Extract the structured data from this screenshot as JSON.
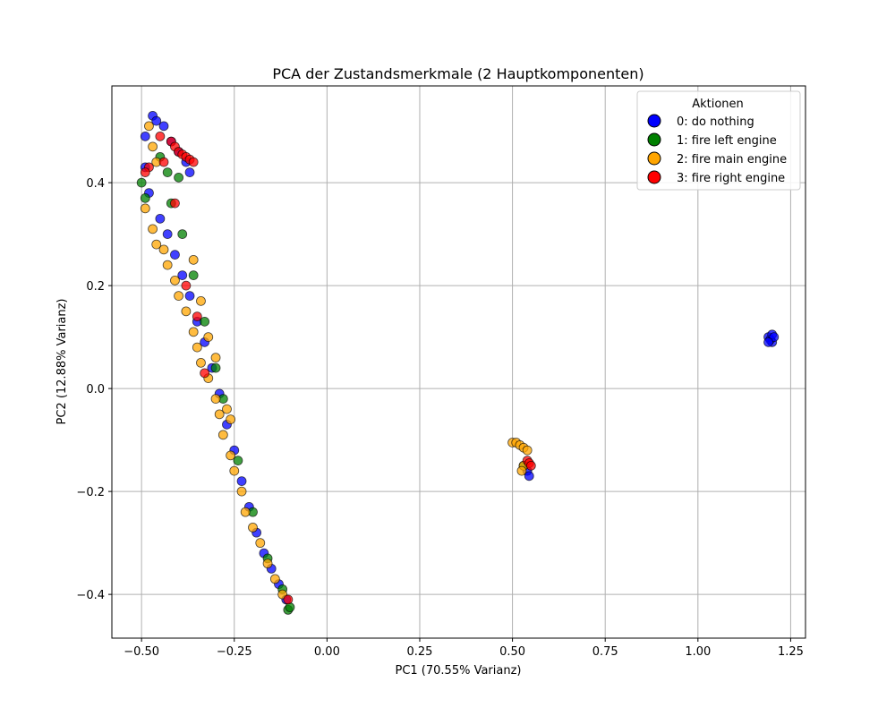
{
  "chart_data": {
    "type": "scatter",
    "title": "PCA der Zustandsmerkmale (2 Hauptkomponenten)",
    "xlabel": "PC1 (70.55% Varianz)",
    "ylabel": "PC2 (12.88% Varianz)",
    "xlim": [
      -0.58,
      1.29
    ],
    "ylim": [
      -0.485,
      0.588
    ],
    "xticks": [
      -0.5,
      -0.25,
      0.0,
      0.25,
      0.5,
      0.75,
      1.0,
      1.25
    ],
    "xtick_labels": [
      "−0.50",
      "−0.25",
      "0.00",
      "0.25",
      "0.50",
      "0.75",
      "1.00",
      "1.25"
    ],
    "yticks": [
      -0.4,
      -0.2,
      0.0,
      0.2,
      0.4
    ],
    "ytick_labels": [
      "−0.4",
      "−0.2",
      "0.0",
      "0.2",
      "0.4"
    ],
    "grid": true,
    "legend": {
      "title": "Aktionen",
      "placement": "top-right"
    },
    "series": [
      {
        "name": "0: do nothing",
        "color": "#0000ff",
        "points": [
          [
            -0.47,
            0.53
          ],
          [
            -0.49,
            0.49
          ],
          [
            -0.46,
            0.52
          ],
          [
            -0.44,
            0.51
          ],
          [
            -0.42,
            0.48
          ],
          [
            -0.4,
            0.46
          ],
          [
            -0.38,
            0.44
          ],
          [
            -0.37,
            0.42
          ],
          [
            -0.49,
            0.43
          ],
          [
            -0.48,
            0.38
          ],
          [
            -0.45,
            0.33
          ],
          [
            -0.43,
            0.3
          ],
          [
            -0.41,
            0.26
          ],
          [
            -0.39,
            0.22
          ],
          [
            -0.37,
            0.18
          ],
          [
            -0.35,
            0.13
          ],
          [
            -0.33,
            0.09
          ],
          [
            -0.31,
            0.04
          ],
          [
            -0.29,
            -0.01
          ],
          [
            -0.27,
            -0.07
          ],
          [
            -0.25,
            -0.12
          ],
          [
            -0.23,
            -0.18
          ],
          [
            -0.21,
            -0.23
          ],
          [
            -0.19,
            -0.28
          ],
          [
            -0.17,
            -0.32
          ],
          [
            -0.15,
            -0.35
          ],
          [
            -0.13,
            -0.38
          ],
          [
            -0.11,
            -0.41
          ],
          [
            0.54,
            -0.16
          ],
          [
            0.545,
            -0.17
          ],
          [
            1.19,
            0.1
          ],
          [
            1.2,
            0.09
          ],
          [
            1.195,
            0.095
          ],
          [
            1.2,
            0.105
          ],
          [
            1.205,
            0.1
          ],
          [
            1.19,
            0.09
          ]
        ]
      },
      {
        "name": "1: fire left engine",
        "color": "#008000",
        "points": [
          [
            -0.5,
            0.4
          ],
          [
            -0.49,
            0.37
          ],
          [
            -0.45,
            0.45
          ],
          [
            -0.43,
            0.42
          ],
          [
            -0.4,
            0.41
          ],
          [
            -0.42,
            0.36
          ],
          [
            -0.39,
            0.3
          ],
          [
            -0.36,
            0.22
          ],
          [
            -0.33,
            0.13
          ],
          [
            -0.3,
            0.04
          ],
          [
            -0.28,
            -0.02
          ],
          [
            -0.24,
            -0.14
          ],
          [
            -0.2,
            -0.24
          ],
          [
            -0.16,
            -0.33
          ],
          [
            -0.12,
            -0.39
          ],
          [
            -0.105,
            -0.43
          ],
          [
            -0.1,
            -0.425
          ],
          [
            0.53,
            -0.15
          ]
        ]
      },
      {
        "name": "2: fire main engine",
        "color": "#ffa500",
        "points": [
          [
            -0.48,
            0.51
          ],
          [
            -0.47,
            0.47
          ],
          [
            -0.46,
            0.44
          ],
          [
            -0.49,
            0.35
          ],
          [
            -0.47,
            0.31
          ],
          [
            -0.46,
            0.28
          ],
          [
            -0.44,
            0.27
          ],
          [
            -0.43,
            0.24
          ],
          [
            -0.41,
            0.21
          ],
          [
            -0.4,
            0.18
          ],
          [
            -0.38,
            0.15
          ],
          [
            -0.36,
            0.11
          ],
          [
            -0.35,
            0.08
          ],
          [
            -0.34,
            0.05
          ],
          [
            -0.32,
            0.02
          ],
          [
            -0.3,
            -0.02
          ],
          [
            -0.29,
            -0.05
          ],
          [
            -0.28,
            -0.09
          ],
          [
            -0.26,
            -0.13
          ],
          [
            -0.25,
            -0.16
          ],
          [
            -0.23,
            -0.2
          ],
          [
            -0.22,
            -0.24
          ],
          [
            -0.2,
            -0.27
          ],
          [
            -0.18,
            -0.3
          ],
          [
            -0.16,
            -0.34
          ],
          [
            -0.14,
            -0.37
          ],
          [
            -0.12,
            -0.4
          ],
          [
            -0.36,
            0.25
          ],
          [
            -0.34,
            0.17
          ],
          [
            -0.32,
            0.1
          ],
          [
            -0.3,
            0.06
          ],
          [
            -0.27,
            -0.04
          ],
          [
            -0.26,
            -0.06
          ],
          [
            0.5,
            -0.105
          ],
          [
            0.51,
            -0.105
          ],
          [
            0.52,
            -0.11
          ],
          [
            0.53,
            -0.115
          ],
          [
            0.54,
            -0.12
          ],
          [
            0.53,
            -0.15
          ],
          [
            0.525,
            -0.16
          ]
        ]
      },
      {
        "name": "3: fire right engine",
        "color": "#ff0000",
        "points": [
          [
            -0.42,
            0.48
          ],
          [
            -0.41,
            0.47
          ],
          [
            -0.4,
            0.46
          ],
          [
            -0.39,
            0.455
          ],
          [
            -0.38,
            0.45
          ],
          [
            -0.37,
            0.445
          ],
          [
            -0.36,
            0.44
          ],
          [
            -0.45,
            0.49
          ],
          [
            -0.48,
            0.43
          ],
          [
            -0.49,
            0.42
          ],
          [
            -0.44,
            0.44
          ],
          [
            -0.41,
            0.36
          ],
          [
            -0.38,
            0.2
          ],
          [
            -0.35,
            0.14
          ],
          [
            -0.33,
            0.03
          ],
          [
            0.54,
            -0.14
          ],
          [
            0.545,
            -0.145
          ],
          [
            0.55,
            -0.15
          ],
          [
            -0.105,
            -0.41
          ]
        ]
      }
    ]
  }
}
